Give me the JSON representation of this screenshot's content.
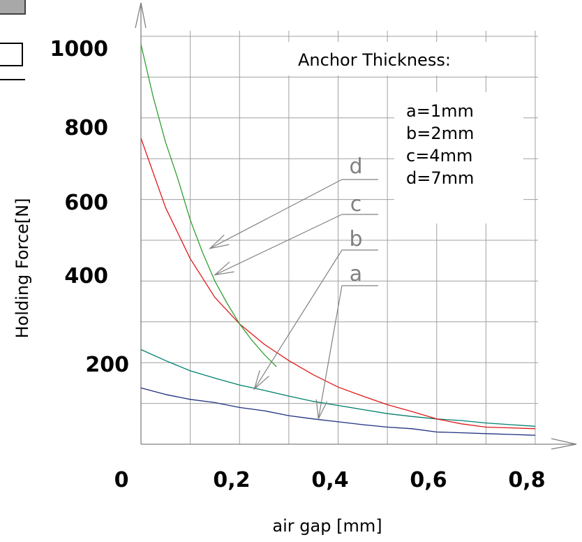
{
  "chart_data": {
    "type": "line",
    "xlabel": "air gap [mm]",
    "ylabel": "Holding Force[N]",
    "xlim": [
      0,
      0.8
    ],
    "ylim": [
      0,
      1000
    ],
    "x_ticks": [
      "0",
      "0,2",
      "0,4",
      "0,6",
      "0,8"
    ],
    "y_ticks": [
      "200",
      "400",
      "600",
      "800",
      "1000"
    ],
    "grid": true,
    "legend": {
      "title": "Anchor Thickness:",
      "entries": [
        "a=1mm",
        "b=2mm",
        "c=4mm",
        "d=7mm"
      ]
    },
    "series": [
      {
        "name": "a",
        "color": "#1f2f80",
        "x": [
          0,
          0.05,
          0.1,
          0.15,
          0.2,
          0.25,
          0.3,
          0.35,
          0.4,
          0.45,
          0.5,
          0.55,
          0.6,
          0.65,
          0.7,
          0.75,
          0.8
        ],
        "y": [
          138,
          122,
          110,
          102,
          90,
          82,
          70,
          62,
          55,
          48,
          42,
          38,
          30,
          28,
          26,
          24,
          22
        ]
      },
      {
        "name": "b",
        "color": "#00806e",
        "x": [
          0,
          0.05,
          0.1,
          0.15,
          0.2,
          0.25,
          0.3,
          0.35,
          0.4,
          0.45,
          0.5,
          0.55,
          0.6,
          0.65,
          0.7,
          0.75,
          0.8
        ],
        "y": [
          232,
          205,
          180,
          162,
          145,
          132,
          118,
          105,
          95,
          85,
          75,
          68,
          62,
          58,
          52,
          48,
          44
        ]
      },
      {
        "name": "c",
        "color": "#e01818",
        "x": [
          0,
          0.05,
          0.1,
          0.15,
          0.2,
          0.25,
          0.3,
          0.35,
          0.4,
          0.45,
          0.5,
          0.55,
          0.6,
          0.65,
          0.7,
          0.75,
          0.8
        ],
        "y": [
          750,
          580,
          455,
          360,
          295,
          245,
          205,
          170,
          140,
          118,
          97,
          80,
          62,
          50,
          42,
          40,
          38
        ]
      },
      {
        "name": "d",
        "color": "#30a030",
        "x": [
          0,
          0.025,
          0.05,
          0.075,
          0.1,
          0.125,
          0.15,
          0.175,
          0.2,
          0.225,
          0.25,
          0.275
        ],
        "y": [
          980,
          850,
          740,
          650,
          550,
          470,
          400,
          345,
          295,
          255,
          220,
          190
        ]
      }
    ],
    "annotations": [
      {
        "label": "d",
        "arrow_to": [
          0.14,
          480
        ]
      },
      {
        "label": "c",
        "arrow_to": [
          0.15,
          415
        ]
      },
      {
        "label": "b",
        "arrow_to": [
          0.23,
          135
        ]
      },
      {
        "label": "a",
        "arrow_to": [
          0.36,
          62
        ]
      }
    ]
  }
}
